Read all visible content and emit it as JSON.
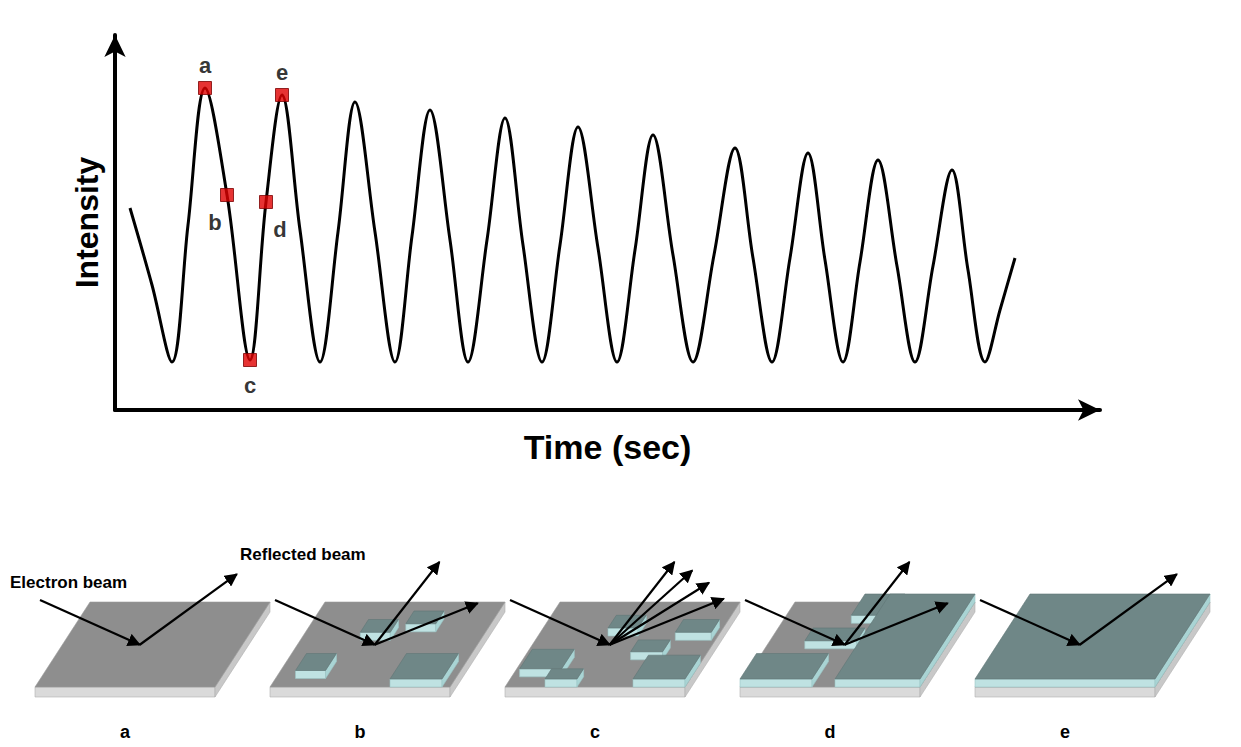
{
  "chart_data": {
    "type": "line",
    "x_label": "Time (sec)",
    "y_label": "Intensity",
    "color": "#000000",
    "grid": false,
    "tick_labels": false,
    "xlim": [
      115,
      1100
    ],
    "ylim": [
      0,
      375
    ],
    "x": [
      130,
      152,
      172,
      188,
      205,
      227,
      250,
      266,
      282,
      300,
      320,
      338,
      355,
      375,
      395,
      412,
      430,
      450,
      468,
      487,
      505,
      523,
      542,
      560,
      578,
      598,
      617,
      635,
      653,
      673,
      693,
      714,
      735,
      753,
      772,
      790,
      808,
      825,
      843,
      860,
      878,
      897,
      915,
      933,
      952,
      968,
      985,
      1000,
      1015
    ],
    "values": [
      202,
      125,
      48,
      185,
      322,
      215,
      50,
      208,
      315,
      180,
      48,
      178,
      308,
      178,
      48,
      174,
      300,
      170,
      48,
      170,
      292,
      165,
      48,
      165,
      283,
      162,
      48,
      160,
      275,
      155,
      48,
      155,
      262,
      152,
      48,
      152,
      257,
      150,
      48,
      148,
      250,
      144,
      48,
      144,
      240,
      140,
      48,
      100,
      152
    ],
    "annotations": {
      "marker": "square",
      "color": "#e00000",
      "points": [
        {
          "label": "a",
          "x": 205,
          "y": 322
        },
        {
          "label": "b",
          "x": 227,
          "y": 215
        },
        {
          "label": "c",
          "x": 250,
          "y": 50
        },
        {
          "label": "d",
          "x": 266,
          "y": 208
        },
        {
          "label": "e",
          "x": 282,
          "y": 315
        }
      ]
    }
  },
  "diagram": {
    "texts": {
      "incoming": "Electron beam",
      "reflected": "Reflected beam"
    },
    "panels": [
      "a",
      "b",
      "c",
      "d",
      "e"
    ]
  }
}
